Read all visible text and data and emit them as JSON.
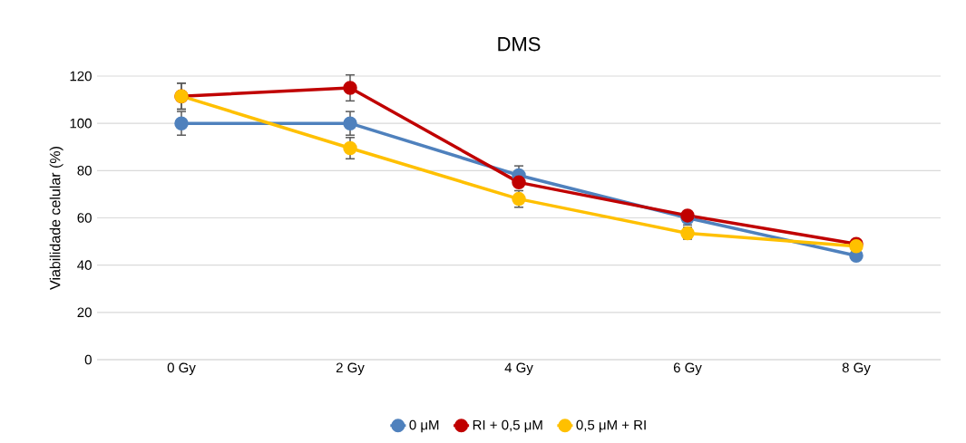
{
  "chart_data": {
    "type": "line",
    "title": "DMS",
    "ylabel": "Viabilidade celular (%)",
    "categories": [
      "0 Gy",
      "2 Gy",
      "4 Gy",
      "6 Gy",
      "8 Gy"
    ],
    "series": [
      {
        "name": "0 μM",
        "color": "#4f81bd",
        "values": [
          100,
          100,
          78,
          60,
          44
        ],
        "errors": [
          5,
          5,
          4,
          3,
          null
        ]
      },
      {
        "name": "RI + 0,5 μM",
        "color": "#c00000",
        "values": [
          111.5,
          115,
          75,
          61,
          49
        ],
        "errors": [
          5.5,
          5.5,
          null,
          null,
          null
        ]
      },
      {
        "name": "0,5 μM + RI",
        "color": "#ffc000",
        "values": [
          111.5,
          89.5,
          68,
          53.5,
          48
        ],
        "errors": [
          5.5,
          4.5,
          3.5,
          2.5,
          null
        ]
      }
    ],
    "ylim": [
      0,
      120
    ],
    "yticks": [
      0,
      20,
      40,
      60,
      80,
      100,
      120
    ],
    "grid": "y",
    "legend": "bottom",
    "marker": "circle",
    "line_style": "solid"
  }
}
